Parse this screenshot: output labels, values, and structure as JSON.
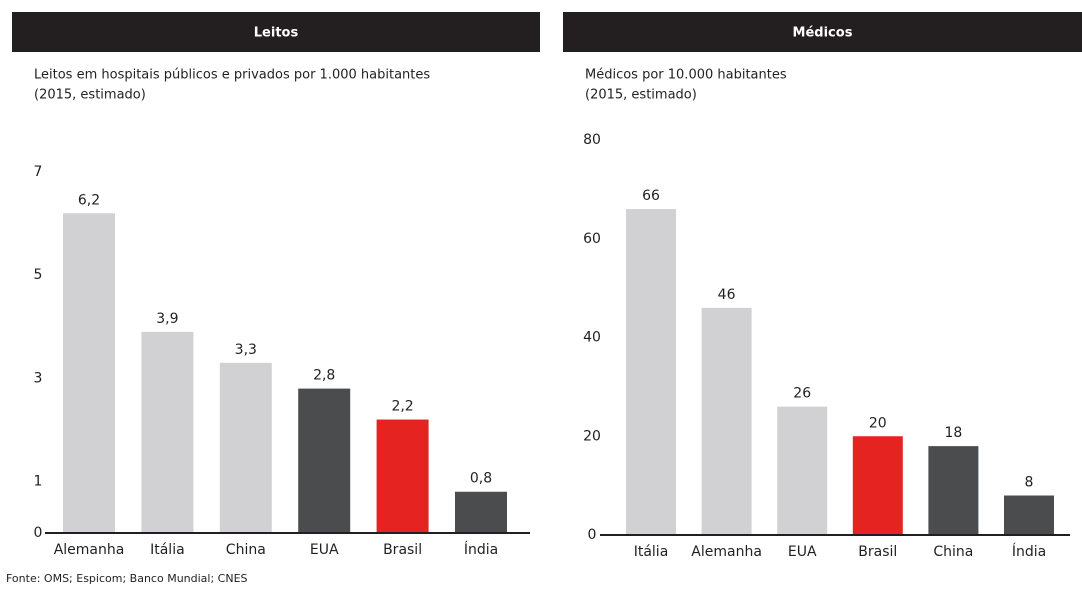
{
  "chart_data": [
    {
      "type": "bar",
      "title": "Leitos",
      "subtitle": [
        "Leitos em hospitais públicos e privados por 1.000 habitantes",
        "(2015, estimado)"
      ],
      "categories": [
        "Alemanha",
        "Itália",
        "China",
        "EUA",
        "Brasil",
        "Índia"
      ],
      "values": [
        6.2,
        3.9,
        3.3,
        2.8,
        2.2,
        0.8
      ],
      "value_labels": [
        "6,2",
        "3,9",
        "3,3",
        "2,8",
        "2,2",
        "0,8"
      ],
      "colors": [
        "#d1d1d3",
        "#d1d1d3",
        "#d1d1d3",
        "#4b4c4e",
        "#e52421",
        "#4b4c4e"
      ],
      "ylim": [
        0,
        7
      ],
      "yticks": [
        0,
        1,
        3,
        5,
        7
      ]
    },
    {
      "type": "bar",
      "title": "Médicos",
      "subtitle": [
        "Médicos por 10.000 habitantes",
        "(2015, estimado)"
      ],
      "categories": [
        "Itália",
        "Alemanha",
        "EUA",
        "Brasil",
        "China",
        "Índia"
      ],
      "values": [
        66,
        46,
        26,
        20,
        18,
        8
      ],
      "colors": [
        "#d1d1d3",
        "#d1d1d3",
        "#d1d1d3",
        "#e52421",
        "#4b4c4e",
        "#4b4c4e"
      ],
      "ylim": [
        0,
        80
      ],
      "yticks": [
        0,
        20,
        40,
        60,
        80
      ]
    }
  ],
  "source": "Fonte: OMS; Espicom; Banco Mundial; CNES"
}
